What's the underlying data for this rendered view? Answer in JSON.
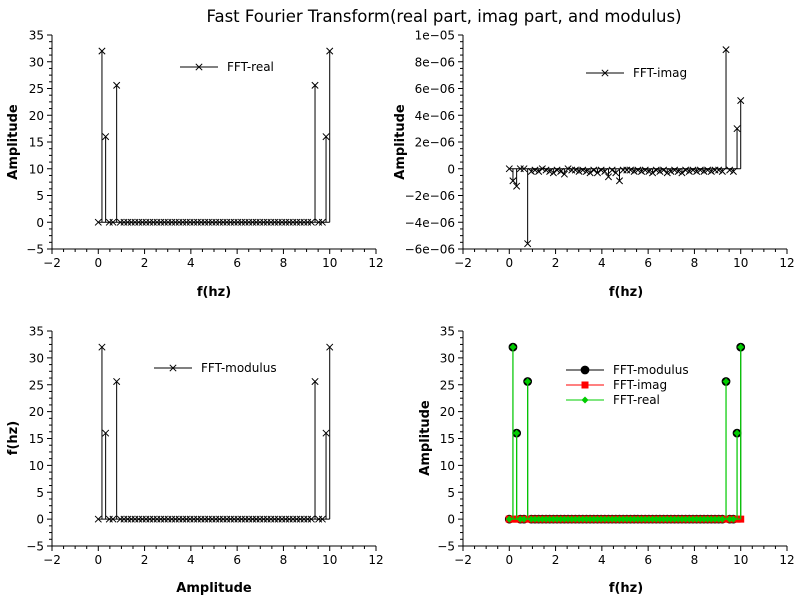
{
  "figure": {
    "title": "Fast Fourier Transform(real part, imag part, and modulus)"
  },
  "chart_data": [
    {
      "type": "line",
      "style": "stem",
      "xlabel": "f(hz)",
      "ylabel": "Amplitude",
      "xlim": [
        -2,
        12
      ],
      "ylim": [
        -5,
        35
      ],
      "xticks": [
        -2,
        0,
        2,
        4,
        6,
        8,
        10,
        12
      ],
      "yticks": [
        -5,
        0,
        5,
        10,
        15,
        20,
        25,
        30,
        35
      ],
      "ytick_labels": [
        "−5",
        "0",
        "5",
        "10",
        "15",
        "20",
        "25",
        "30",
        "35"
      ],
      "xtick_labels": [
        "−2",
        "0",
        "2",
        "4",
        "6",
        "8",
        "10",
        "12"
      ],
      "legend_position": "top-center",
      "series": [
        {
          "name": "FFT-real",
          "color": "#000000",
          "marker": "x",
          "x": [
            0.0,
            0.1587,
            0.3175,
            0.4762,
            0.6349,
            0.7937,
            0.9524,
            1.1111,
            1.2698,
            1.4286,
            1.5873,
            1.746,
            1.9048,
            2.0635,
            2.2222,
            2.381,
            2.5397,
            2.6984,
            2.8571,
            3.0159,
            3.1746,
            3.3333,
            3.4921,
            3.6508,
            3.8095,
            3.9683,
            4.127,
            4.2857,
            4.4444,
            4.6032,
            4.7619,
            4.9206,
            5.0794,
            5.2381,
            5.3968,
            5.5556,
            5.7143,
            5.873,
            6.0317,
            6.1905,
            6.3492,
            6.5079,
            6.6667,
            6.8254,
            6.9841,
            7.1429,
            7.3016,
            7.4603,
            7.619,
            7.7778,
            7.9365,
            8.0952,
            8.254,
            8.4127,
            8.5714,
            8.7302,
            8.8889,
            9.0476,
            9.2063,
            9.3651,
            9.5238,
            9.6825,
            9.8413,
            10.0
          ],
          "y": [
            0,
            32,
            16,
            0,
            0,
            25.6,
            0,
            0,
            0,
            0,
            0,
            0,
            0,
            0,
            0,
            0,
            0,
            0,
            0,
            0,
            0,
            0,
            0,
            0,
            0,
            0,
            0,
            0,
            0,
            0,
            0,
            0,
            0,
            0,
            0,
            0,
            0,
            0,
            0,
            0,
            0,
            0,
            0,
            0,
            0,
            0,
            0,
            0,
            0,
            0,
            0,
            0,
            0,
            0,
            0,
            0,
            0,
            0,
            0,
            25.6,
            0,
            0,
            16,
            32
          ]
        }
      ]
    },
    {
      "type": "line",
      "style": "stem",
      "xlabel": "f(hz)",
      "ylabel": "Amplitude",
      "xlim": [
        -2,
        12
      ],
      "ylim": [
        -6e-06,
        1e-05
      ],
      "xticks": [
        -2,
        0,
        2,
        4,
        6,
        8,
        10,
        12
      ],
      "yticks": [
        -6e-06,
        -4e-06,
        -2e-06,
        0,
        2e-06,
        4e-06,
        6e-06,
        8e-06,
        1e-05
      ],
      "ytick_labels": [
        "−6e−06",
        "−4e−06",
        "−2e−06",
        "0",
        "2e−06",
        "4e−06",
        "6e−06",
        "8e−06",
        "1e−05"
      ],
      "xtick_labels": [
        "−2",
        "0",
        "2",
        "4",
        "6",
        "8",
        "10",
        "12"
      ],
      "legend_position": "top-right",
      "series": [
        {
          "name": "FFT-imag",
          "color": "#000000",
          "marker": "x",
          "x": [
            0.0,
            0.1587,
            0.3175,
            0.4762,
            0.6349,
            0.7937,
            0.9524,
            1.1111,
            1.2698,
            1.4286,
            1.5873,
            1.746,
            1.9048,
            2.0635,
            2.2222,
            2.381,
            2.5397,
            2.6984,
            2.8571,
            3.0159,
            3.1746,
            3.3333,
            3.4921,
            3.6508,
            3.8095,
            3.9683,
            4.127,
            4.2857,
            4.4444,
            4.6032,
            4.7619,
            4.9206,
            5.0794,
            5.2381,
            5.3968,
            5.5556,
            5.7143,
            5.873,
            6.0317,
            6.1905,
            6.3492,
            6.5079,
            6.6667,
            6.8254,
            6.9841,
            7.1429,
            7.3016,
            7.4603,
            7.619,
            7.7778,
            7.9365,
            8.0952,
            8.254,
            8.4127,
            8.5714,
            8.7302,
            8.8889,
            9.0476,
            9.2063,
            9.3651,
            9.5238,
            9.6825,
            9.8413,
            10.0
          ],
          "y": [
            0,
            -9e-07,
            -1.3e-06,
            0,
            0,
            -5.6e-06,
            -2e-07,
            -1e-07,
            -2e-07,
            0,
            -1e-07,
            -2e-07,
            -3e-07,
            -1e-07,
            -2e-07,
            -4e-07,
            0,
            -1e-07,
            -1e-07,
            -2e-07,
            -1e-07,
            -2e-07,
            -3e-07,
            -1e-07,
            -3e-07,
            -1e-07,
            -2e-07,
            -6e-07,
            -1e-07,
            -3e-07,
            -9e-07,
            -1e-07,
            -1e-07,
            -1e-07,
            -2e-07,
            -1e-07,
            -2e-07,
            -1e-07,
            -2e-07,
            -3e-07,
            -1e-07,
            -2e-07,
            -1e-07,
            -3e-07,
            -2e-07,
            -1e-07,
            -2e-07,
            -3e-07,
            -1e-07,
            -2e-07,
            -1e-07,
            -2e-07,
            -1e-07,
            -2e-07,
            -1e-07,
            -2e-07,
            -1e-07,
            -1e-07,
            -2e-07,
            8.9e-06,
            -1e-07,
            -2e-07,
            3e-06,
            5.1e-06
          ]
        }
      ]
    },
    {
      "type": "line",
      "style": "stem",
      "xlabel": "Amplitude",
      "ylabel": "f(hz)",
      "xlim": [
        -2,
        12
      ],
      "ylim": [
        -5,
        35
      ],
      "xticks": [
        -2,
        0,
        2,
        4,
        6,
        8,
        10,
        12
      ],
      "yticks": [
        -5,
        0,
        5,
        10,
        15,
        20,
        25,
        30,
        35
      ],
      "ytick_labels": [
        "−5",
        "0",
        "5",
        "10",
        "15",
        "20",
        "25",
        "30",
        "35"
      ],
      "xtick_labels": [
        "−2",
        "0",
        "2",
        "4",
        "6",
        "8",
        "10",
        "12"
      ],
      "legend_position": "top-center",
      "series": [
        {
          "name": "FFT-modulus",
          "color": "#000000",
          "marker": "x",
          "x": [
            0.0,
            0.1587,
            0.3175,
            0.4762,
            0.6349,
            0.7937,
            0.9524,
            1.1111,
            1.2698,
            1.4286,
            1.5873,
            1.746,
            1.9048,
            2.0635,
            2.2222,
            2.381,
            2.5397,
            2.6984,
            2.8571,
            3.0159,
            3.1746,
            3.3333,
            3.4921,
            3.6508,
            3.8095,
            3.9683,
            4.127,
            4.2857,
            4.4444,
            4.6032,
            4.7619,
            4.9206,
            5.0794,
            5.2381,
            5.3968,
            5.5556,
            5.7143,
            5.873,
            6.0317,
            6.1905,
            6.3492,
            6.5079,
            6.6667,
            6.8254,
            6.9841,
            7.1429,
            7.3016,
            7.4603,
            7.619,
            7.7778,
            7.9365,
            8.0952,
            8.254,
            8.4127,
            8.5714,
            8.7302,
            8.8889,
            9.0476,
            9.2063,
            9.3651,
            9.5238,
            9.6825,
            9.8413,
            10.0
          ],
          "y": [
            0,
            32,
            16,
            0,
            0,
            25.6,
            0,
            0,
            0,
            0,
            0,
            0,
            0,
            0,
            0,
            0,
            0,
            0,
            0,
            0,
            0,
            0,
            0,
            0,
            0,
            0,
            0,
            0,
            0,
            0,
            0,
            0,
            0,
            0,
            0,
            0,
            0,
            0,
            0,
            0,
            0,
            0,
            0,
            0,
            0,
            0,
            0,
            0,
            0,
            0,
            0,
            0,
            0,
            0,
            0,
            0,
            0,
            0,
            0,
            25.6,
            0,
            0,
            16,
            32
          ]
        }
      ]
    },
    {
      "type": "line",
      "style": "stem",
      "xlabel": "f(hz)",
      "ylabel": "Amplitude",
      "xlim": [
        -2,
        12
      ],
      "ylim": [
        -5,
        35
      ],
      "xticks": [
        -2,
        0,
        2,
        4,
        6,
        8,
        10,
        12
      ],
      "yticks": [
        -5,
        0,
        5,
        10,
        15,
        20,
        25,
        30,
        35
      ],
      "ytick_labels": [
        "−5",
        "0",
        "5",
        "10",
        "15",
        "20",
        "25",
        "30",
        "35"
      ],
      "xtick_labels": [
        "−2",
        "0",
        "2",
        "4",
        "6",
        "8",
        "10",
        "12"
      ],
      "legend_position": "top-center",
      "series": [
        {
          "name": "FFT-modulus",
          "color": "#000000",
          "marker": "circle",
          "x": [
            0.0,
            0.1587,
            0.3175,
            0.4762,
            0.6349,
            0.7937,
            0.9524,
            1.1111,
            1.2698,
            1.4286,
            1.5873,
            1.746,
            1.9048,
            2.0635,
            2.2222,
            2.381,
            2.5397,
            2.6984,
            2.8571,
            3.0159,
            3.1746,
            3.3333,
            3.4921,
            3.6508,
            3.8095,
            3.9683,
            4.127,
            4.2857,
            4.4444,
            4.6032,
            4.7619,
            4.9206,
            5.0794,
            5.2381,
            5.3968,
            5.5556,
            5.7143,
            5.873,
            6.0317,
            6.1905,
            6.3492,
            6.5079,
            6.6667,
            6.8254,
            6.9841,
            7.1429,
            7.3016,
            7.4603,
            7.619,
            7.7778,
            7.9365,
            8.0952,
            8.254,
            8.4127,
            8.5714,
            8.7302,
            8.8889,
            9.0476,
            9.2063,
            9.3651,
            9.5238,
            9.6825,
            9.8413,
            10.0
          ],
          "y": [
            0,
            32,
            16,
            0,
            0,
            25.6,
            0,
            0,
            0,
            0,
            0,
            0,
            0,
            0,
            0,
            0,
            0,
            0,
            0,
            0,
            0,
            0,
            0,
            0,
            0,
            0,
            0,
            0,
            0,
            0,
            0,
            0,
            0,
            0,
            0,
            0,
            0,
            0,
            0,
            0,
            0,
            0,
            0,
            0,
            0,
            0,
            0,
            0,
            0,
            0,
            0,
            0,
            0,
            0,
            0,
            0,
            0,
            0,
            0,
            25.6,
            0,
            0,
            16,
            32
          ]
        },
        {
          "name": "FFT-imag",
          "color": "#ff0000",
          "marker": "square",
          "x": [
            0.0,
            0.1587,
            0.3175,
            0.4762,
            0.6349,
            0.7937,
            0.9524,
            1.1111,
            1.2698,
            1.4286,
            1.5873,
            1.746,
            1.9048,
            2.0635,
            2.2222,
            2.381,
            2.5397,
            2.6984,
            2.8571,
            3.0159,
            3.1746,
            3.3333,
            3.4921,
            3.6508,
            3.8095,
            3.9683,
            4.127,
            4.2857,
            4.4444,
            4.6032,
            4.7619,
            4.9206,
            5.0794,
            5.2381,
            5.3968,
            5.5556,
            5.7143,
            5.873,
            6.0317,
            6.1905,
            6.3492,
            6.5079,
            6.6667,
            6.8254,
            6.9841,
            7.1429,
            7.3016,
            7.4603,
            7.619,
            7.7778,
            7.9365,
            8.0952,
            8.254,
            8.4127,
            8.5714,
            8.7302,
            8.8889,
            9.0476,
            9.2063,
            9.3651,
            9.5238,
            9.6825,
            9.8413,
            10.0
          ],
          "y": [
            0,
            0,
            0,
            0,
            0,
            0,
            0,
            0,
            0,
            0,
            0,
            0,
            0,
            0,
            0,
            0,
            0,
            0,
            0,
            0,
            0,
            0,
            0,
            0,
            0,
            0,
            0,
            0,
            0,
            0,
            0,
            0,
            0,
            0,
            0,
            0,
            0,
            0,
            0,
            0,
            0,
            0,
            0,
            0,
            0,
            0,
            0,
            0,
            0,
            0,
            0,
            0,
            0,
            0,
            0,
            0,
            0,
            0,
            0,
            0,
            0,
            0,
            0,
            0
          ]
        },
        {
          "name": "FFT-real",
          "color": "#00cc00",
          "marker": "diamond",
          "x": [
            0.0,
            0.1587,
            0.3175,
            0.4762,
            0.6349,
            0.7937,
            0.9524,
            1.1111,
            1.2698,
            1.4286,
            1.5873,
            1.746,
            1.9048,
            2.0635,
            2.2222,
            2.381,
            2.5397,
            2.6984,
            2.8571,
            3.0159,
            3.1746,
            3.3333,
            3.4921,
            3.6508,
            3.8095,
            3.9683,
            4.127,
            4.2857,
            4.4444,
            4.6032,
            4.7619,
            4.9206,
            5.0794,
            5.2381,
            5.3968,
            5.5556,
            5.7143,
            5.873,
            6.0317,
            6.1905,
            6.3492,
            6.5079,
            6.6667,
            6.8254,
            6.9841,
            7.1429,
            7.3016,
            7.4603,
            7.619,
            7.7778,
            7.9365,
            8.0952,
            8.254,
            8.4127,
            8.5714,
            8.7302,
            8.8889,
            9.0476,
            9.2063,
            9.3651,
            9.5238,
            9.6825,
            9.8413,
            10.0
          ],
          "y": [
            0,
            32,
            16,
            0,
            0,
            25.6,
            0,
            0,
            0,
            0,
            0,
            0,
            0,
            0,
            0,
            0,
            0,
            0,
            0,
            0,
            0,
            0,
            0,
            0,
            0,
            0,
            0,
            0,
            0,
            0,
            0,
            0,
            0,
            0,
            0,
            0,
            0,
            0,
            0,
            0,
            0,
            0,
            0,
            0,
            0,
            0,
            0,
            0,
            0,
            0,
            0,
            0,
            0,
            0,
            0,
            0,
            0,
            0,
            0,
            25.6,
            0,
            0,
            16,
            32
          ]
        }
      ]
    }
  ]
}
